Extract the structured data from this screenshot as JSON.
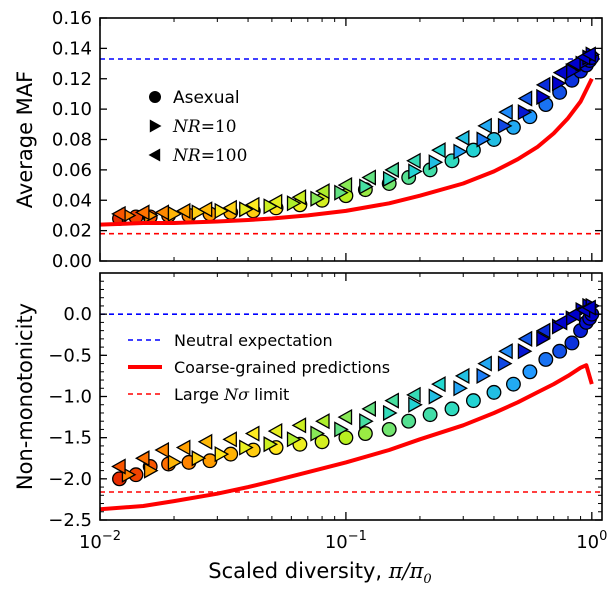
{
  "chart_data": [
    {
      "type": "scatter",
      "panel": "top",
      "ylabel": "Average MAF",
      "xscale": "log",
      "xlim": [
        0.01,
        1.1
      ],
      "ylim": [
        0.0,
        0.16
      ],
      "yticks": [
        "0.00",
        "0.02",
        "0.04",
        "0.06",
        "0.08",
        "0.10",
        "0.12",
        "0.14",
        "0.16"
      ],
      "legend": {
        "placement": "upper-left",
        "entries": [
          {
            "marker": "circle",
            "label": "Asexual"
          },
          {
            "marker": "triangle-right",
            "label": "NR=10"
          },
          {
            "marker": "triangle-left",
            "label": "NR=100"
          }
        ]
      },
      "series": [
        {
          "label_ref": 0,
          "marker": "circle",
          "x": [
            0.012,
            0.014,
            0.016,
            0.019,
            0.023,
            0.028,
            0.034,
            0.042,
            0.052,
            0.065,
            0.08,
            0.1,
            0.12,
            0.15,
            0.18,
            0.22,
            0.27,
            0.33,
            0.4,
            0.48,
            0.56,
            0.65,
            0.74,
            0.83,
            0.9,
            0.95,
            0.98,
            1.0
          ],
          "values": [
            0.028,
            0.029,
            0.029,
            0.03,
            0.03,
            0.031,
            0.032,
            0.033,
            0.035,
            0.037,
            0.04,
            0.043,
            0.047,
            0.051,
            0.055,
            0.06,
            0.066,
            0.073,
            0.08,
            0.088,
            0.095,
            0.103,
            0.111,
            0.119,
            0.125,
            0.129,
            0.132,
            0.134
          ]
        },
        {
          "label_ref": 1,
          "marker": "triangle-right",
          "x": [
            0.013,
            0.016,
            0.02,
            0.025,
            0.031,
            0.039,
            0.049,
            0.061,
            0.076,
            0.095,
            0.12,
            0.15,
            0.19,
            0.23,
            0.29,
            0.36,
            0.44,
            0.53,
            0.63,
            0.73,
            0.83,
            0.91,
            0.97,
            1.0
          ],
          "values": [
            0.03,
            0.03,
            0.031,
            0.032,
            0.033,
            0.034,
            0.036,
            0.038,
            0.041,
            0.045,
            0.049,
            0.054,
            0.059,
            0.065,
            0.072,
            0.08,
            0.089,
            0.098,
            0.108,
            0.117,
            0.125,
            0.13,
            0.134,
            0.136
          ]
        },
        {
          "label_ref": 2,
          "marker": "triangle-left",
          "x": [
            0.012,
            0.015,
            0.018,
            0.022,
            0.027,
            0.034,
            0.042,
            0.052,
            0.065,
            0.081,
            0.1,
            0.125,
            0.155,
            0.19,
            0.24,
            0.3,
            0.37,
            0.45,
            0.54,
            0.64,
            0.75,
            0.85,
            0.93,
            0.98
          ],
          "values": [
            0.031,
            0.032,
            0.032,
            0.033,
            0.034,
            0.035,
            0.037,
            0.039,
            0.042,
            0.046,
            0.05,
            0.055,
            0.06,
            0.066,
            0.073,
            0.081,
            0.089,
            0.098,
            0.107,
            0.116,
            0.124,
            0.13,
            0.134,
            0.136
          ]
        }
      ],
      "reference_lines": [
        {
          "label_ref": 0,
          "y": 0.133,
          "color": "#0000ff",
          "dash": true
        },
        {
          "label_ref": 2,
          "y": 0.018,
          "color": "#ff0000",
          "dash": true
        }
      ],
      "prediction_curve": {
        "label_ref": 1,
        "color": "#ff0000",
        "x": [
          0.01,
          0.015,
          0.02,
          0.03,
          0.04,
          0.05,
          0.07,
          0.1,
          0.15,
          0.2,
          0.3,
          0.4,
          0.5,
          0.6,
          0.7,
          0.8,
          0.9,
          1.0
        ],
        "values": [
          0.024,
          0.025,
          0.025,
          0.026,
          0.027,
          0.028,
          0.03,
          0.033,
          0.038,
          0.043,
          0.051,
          0.059,
          0.067,
          0.075,
          0.084,
          0.094,
          0.105,
          0.12
        ]
      }
    },
    {
      "type": "scatter",
      "panel": "bottom",
      "ylabel": "Non-monotonicity",
      "xlabel": "Scaled diversity, π/π₀",
      "xscale": "log",
      "xlim": [
        0.01,
        1.1
      ],
      "ylim": [
        -2.5,
        0.5
      ],
      "yticks": [
        "−2.5",
        "−2.0",
        "−1.5",
        "−1.0",
        "−0.5",
        "0.0"
      ],
      "xticks": [
        {
          "value": 0.01,
          "base": "10",
          "exp": "−2"
        },
        {
          "value": 0.1,
          "base": "10",
          "exp": "−1"
        },
        {
          "value": 1,
          "base": "10",
          "exp": "0"
        }
      ],
      "legend": {
        "placement": "upper-left",
        "entries": [
          {
            "style": "blue-dashed",
            "label": "Neutral expectation"
          },
          {
            "style": "red-solid",
            "label": "Coarse-grained predictions"
          },
          {
            "style": "red-dashed",
            "label": "Large Nσ limit"
          }
        ]
      },
      "series": [
        {
          "marker": "circle",
          "x": [
            0.012,
            0.014,
            0.016,
            0.019,
            0.023,
            0.028,
            0.034,
            0.042,
            0.052,
            0.065,
            0.08,
            0.1,
            0.12,
            0.15,
            0.18,
            0.22,
            0.27,
            0.33,
            0.4,
            0.48,
            0.56,
            0.65,
            0.74,
            0.83,
            0.9,
            0.95,
            0.98,
            1.0
          ],
          "values": [
            -2.0,
            -1.95,
            -1.85,
            -1.82,
            -1.8,
            -1.78,
            -1.7,
            -1.65,
            -1.62,
            -1.58,
            -1.55,
            -1.5,
            -1.45,
            -1.4,
            -1.3,
            -1.22,
            -1.15,
            -1.05,
            -0.95,
            -0.85,
            -0.7,
            -0.55,
            -0.45,
            -0.35,
            -0.2,
            -0.1,
            -0.05,
            0.0
          ]
        },
        {
          "marker": "triangle-right",
          "x": [
            0.013,
            0.016,
            0.02,
            0.025,
            0.031,
            0.039,
            0.049,
            0.061,
            0.076,
            0.095,
            0.12,
            0.15,
            0.19,
            0.23,
            0.29,
            0.36,
            0.44,
            0.53,
            0.63,
            0.73,
            0.83,
            0.91,
            0.97,
            1.0
          ],
          "values": [
            -1.95,
            -1.9,
            -1.8,
            -1.75,
            -1.7,
            -1.62,
            -1.58,
            -1.52,
            -1.45,
            -1.4,
            -1.3,
            -1.2,
            -1.1,
            -1.0,
            -0.9,
            -0.75,
            -0.6,
            -0.45,
            -0.3,
            -0.15,
            -0.05,
            0.05,
            0.1,
            0.1
          ]
        },
        {
          "marker": "triangle-left",
          "x": [
            0.012,
            0.015,
            0.018,
            0.022,
            0.027,
            0.034,
            0.042,
            0.052,
            0.065,
            0.081,
            0.1,
            0.125,
            0.155,
            0.19,
            0.24,
            0.3,
            0.37,
            0.45,
            0.54,
            0.64,
            0.75,
            0.85,
            0.93,
            0.98
          ],
          "values": [
            -1.85,
            -1.75,
            -1.65,
            -1.62,
            -1.55,
            -1.52,
            -1.45,
            -1.42,
            -1.35,
            -1.3,
            -1.25,
            -1.15,
            -1.05,
            -0.98,
            -0.85,
            -0.75,
            -0.6,
            -0.45,
            -0.3,
            -0.2,
            -0.1,
            0.0,
            0.05,
            0.08
          ]
        }
      ],
      "reference_lines": [
        {
          "y": 0.0,
          "color": "#0000ff",
          "dash": true
        },
        {
          "y": -2.16,
          "color": "#ff0000",
          "dash": true
        }
      ],
      "prediction_curve": {
        "color": "#ff0000",
        "x": [
          0.01,
          0.015,
          0.02,
          0.03,
          0.04,
          0.05,
          0.07,
          0.1,
          0.15,
          0.2,
          0.3,
          0.4,
          0.5,
          0.6,
          0.7,
          0.8,
          0.9,
          0.95,
          1.0
        ],
        "values": [
          -2.37,
          -2.33,
          -2.27,
          -2.18,
          -2.1,
          -2.03,
          -1.92,
          -1.8,
          -1.65,
          -1.52,
          -1.35,
          -1.2,
          -1.07,
          -0.95,
          -0.85,
          -0.75,
          -0.65,
          -0.62,
          -0.85
        ]
      }
    }
  ],
  "colors": {
    "ramp": [
      "#dd1100",
      "#ff6600",
      "#ffaa00",
      "#ffee22",
      "#b8f020",
      "#55e090",
      "#22d8d0",
      "#2299ff",
      "#0000cc"
    ]
  }
}
